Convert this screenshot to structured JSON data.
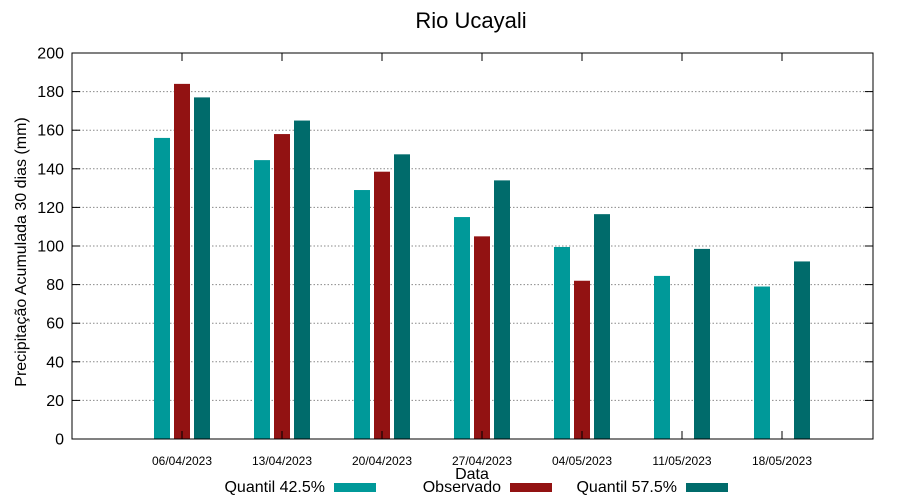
{
  "chart_data": {
    "type": "bar",
    "title": "Rio Ucayali",
    "xlabel": "Data",
    "ylabel": "Precipitação Acumulada 30 dias (mm)",
    "ylim": [
      0,
      200
    ],
    "yticks": [
      0,
      20,
      40,
      60,
      80,
      100,
      120,
      140,
      160,
      180,
      200
    ],
    "grid": true,
    "legend_position": "bottom",
    "categories": [
      "06/04/2023",
      "13/04/2023",
      "20/04/2023",
      "27/04/2023",
      "04/05/2023",
      "11/05/2023",
      "18/05/2023"
    ],
    "series": [
      {
        "name": "Quantil 42.5%",
        "color": "#009999",
        "values": [
          156,
          144.5,
          129,
          115,
          99.5,
          84.5,
          79
        ]
      },
      {
        "name": "Observado",
        "color": "#921212",
        "values": [
          184,
          158,
          138.5,
          105,
          82,
          null,
          null
        ]
      },
      {
        "name": "Quantil 57.5%",
        "color": "#006b6b",
        "values": [
          177,
          165,
          147.5,
          134,
          116.5,
          98.5,
          92
        ]
      }
    ]
  }
}
